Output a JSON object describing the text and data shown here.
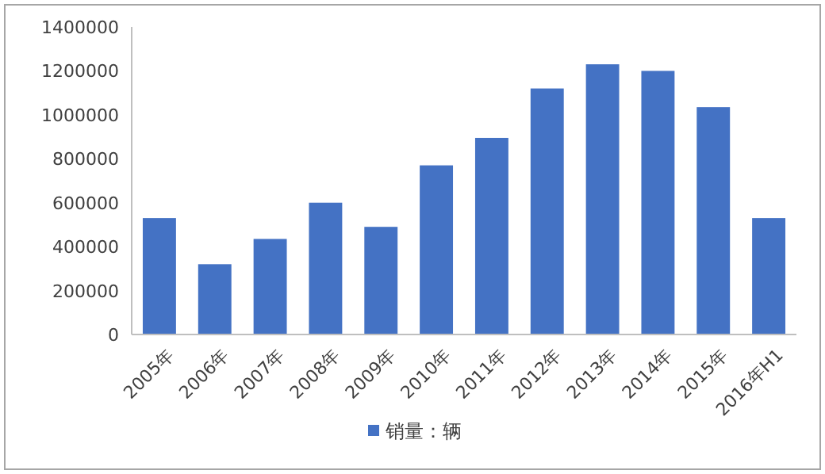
{
  "chart_data": {
    "type": "bar",
    "categories": [
      "2005年",
      "2006年",
      "2007年",
      "2008年",
      "2009年",
      "2010年",
      "2011年",
      "2012年",
      "2013年",
      "2014年",
      "2015年",
      "2016年H1"
    ],
    "series": [
      {
        "name": "销量：辆",
        "color": "#4472c4",
        "values": [
          530000,
          320000,
          435000,
          600000,
          490000,
          770000,
          895000,
          1120000,
          1230000,
          1200000,
          1035000,
          530000
        ]
      }
    ],
    "ylim": [
      0,
      1400000
    ],
    "yticks": [
      0,
      200000,
      400000,
      600000,
      800000,
      1000000,
      1200000,
      1400000
    ],
    "grid": false,
    "legend": "bottom"
  }
}
